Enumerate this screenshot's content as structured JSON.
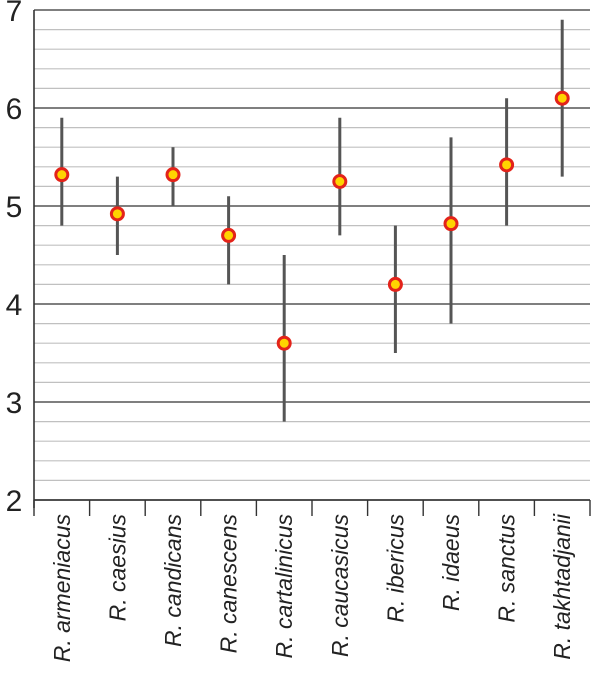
{
  "chart_data": {
    "type": "scatter",
    "title": "",
    "xlabel": "",
    "ylabel": "",
    "ylim": [
      2,
      7
    ],
    "yticks": [
      "2",
      "3",
      "4",
      "5",
      "6",
      "7"
    ],
    "minor_grid_step": 0.2,
    "grid": true,
    "legend": "none",
    "categories": [
      "R. armeniacus",
      "R. caesius",
      "R. candicans",
      "R. canescens",
      "R. cartalinicus",
      "R. caucasicus",
      "R. ibericus",
      "R. idaeus",
      "R. sanctus",
      "R. takhtadjanii"
    ],
    "series": [
      {
        "values": [
          5.32,
          4.92,
          5.32,
          4.7,
          3.6,
          5.25,
          4.2,
          4.82,
          5.42,
          6.1
        ],
        "low": [
          4.8,
          4.5,
          5.0,
          4.2,
          2.8,
          4.7,
          3.5,
          3.8,
          4.8,
          5.3
        ],
        "high": [
          5.9,
          5.3,
          5.6,
          5.1,
          4.5,
          5.9,
          4.8,
          5.7,
          6.1,
          6.9
        ]
      }
    ],
    "colors": {
      "marker_fill": "#ffd400",
      "marker_edge": "#e3231a",
      "error_bar": "#555555",
      "major_grid": "#555555",
      "minor_grid": "#c0c0c0",
      "axis": "#333333"
    }
  }
}
